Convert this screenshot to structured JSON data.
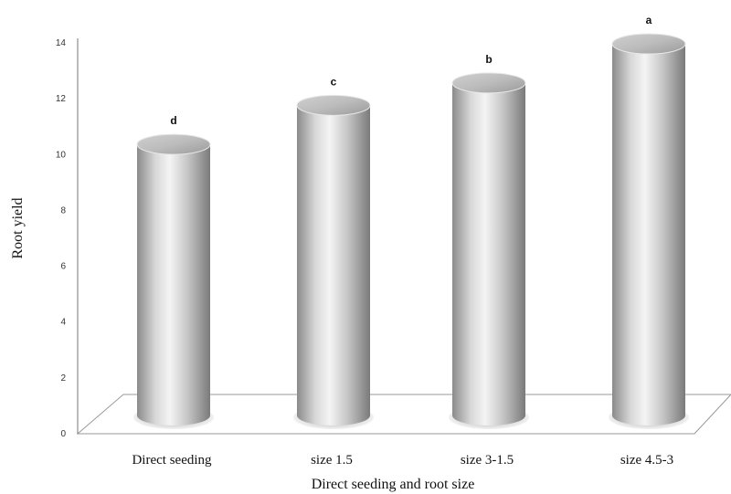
{
  "chart_data": {
    "type": "bar",
    "categories": [
      "Direct seeding",
      "size 1.5",
      "size 3-1.5",
      "size 4.5-3"
    ],
    "values": [
      10.3,
      11.7,
      12.5,
      13.9
    ],
    "significance_letters": [
      "d",
      "c",
      "b",
      "a"
    ],
    "xlabel": "Direct seeding and root size",
    "ylabel": "Root yield",
    "ylim": [
      0,
      14
    ],
    "yticks": [
      0,
      2,
      4,
      6,
      8,
      10,
      12,
      14
    ],
    "grid": false,
    "style": "3d-cylinder",
    "colors": {
      "bar_light": "#f2f2f2",
      "bar_mid": "#bdbdbd",
      "bar_dark": "#7a7a7a",
      "axis": "#555555"
    }
  }
}
